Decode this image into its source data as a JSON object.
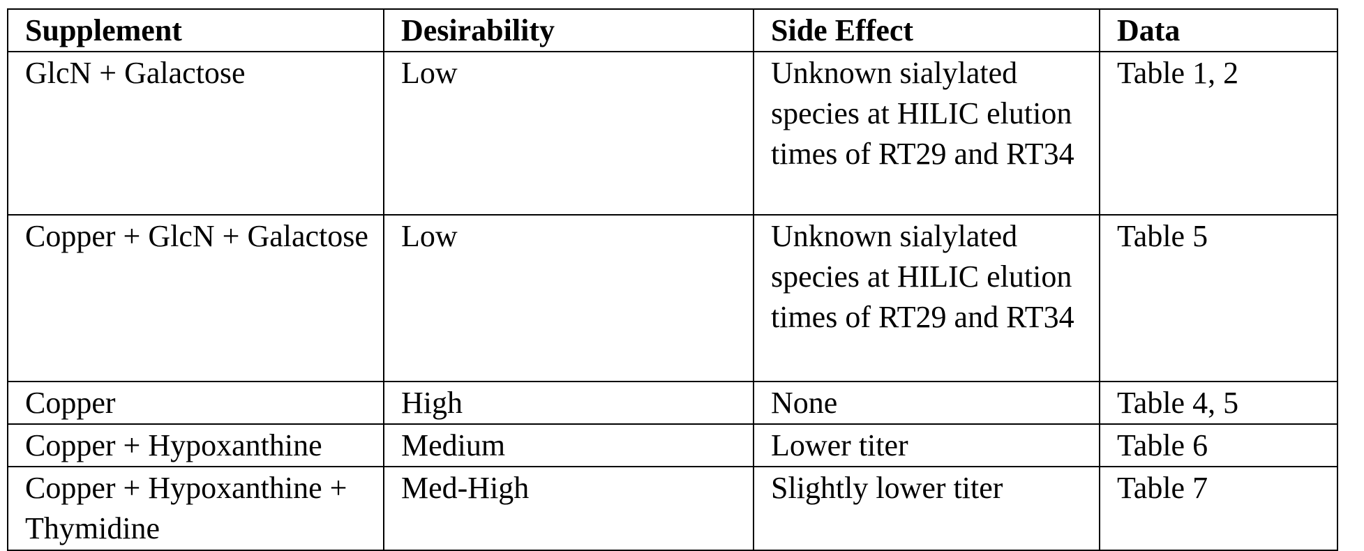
{
  "table": {
    "headers": [
      "Supplement",
      "Desirability",
      "Side Effect",
      "Data"
    ],
    "rows": [
      {
        "supplement": "GlcN + Galactose",
        "desirability": "Low",
        "side_effect": "Unknown sialylated species at HILIC elution times of RT29 and RT34",
        "data": "Table 1, 2"
      },
      {
        "supplement": "Copper + GlcN + Galactose",
        "desirability": "Low",
        "side_effect": "Unknown sialylated species at HILIC elution times of RT29 and RT34",
        "data": "Table 5"
      },
      {
        "supplement": "Copper",
        "desirability": "High",
        "side_effect": "None",
        "data": "Table 4, 5"
      },
      {
        "supplement": "Copper + Hypoxanthine",
        "desirability": "Medium",
        "side_effect": "Lower titer",
        "data": "Table 6"
      },
      {
        "supplement": "Copper + Hypoxanthine + Thymidine",
        "desirability": "Med-High",
        "side_effect": "Slightly lower titer",
        "data": "Table 7"
      }
    ]
  }
}
